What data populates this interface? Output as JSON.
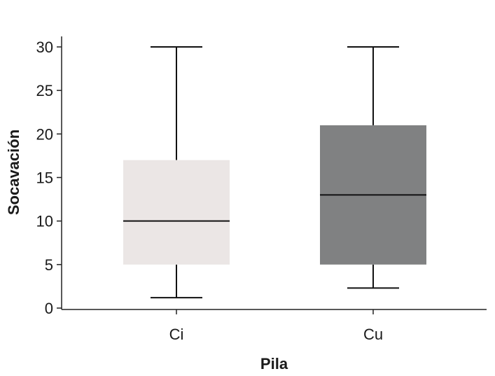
{
  "chart_data": {
    "type": "box",
    "xlabel": "Pila",
    "ylabel": "Socavación",
    "ylim": [
      0,
      31
    ],
    "yticks": [
      0,
      5,
      10,
      15,
      20,
      25,
      30
    ],
    "grid": false,
    "categories": [
      "Ci",
      "Cu"
    ],
    "boxes": [
      {
        "category": "Ci",
        "min": 1.2,
        "q1": 5,
        "median": 10,
        "q3": 17,
        "max": 30,
        "color": "#ebe6e5"
      },
      {
        "category": "Cu",
        "min": 2.3,
        "q1": 5,
        "median": 13,
        "q3": 21,
        "max": 30,
        "color": "#808182"
      }
    ]
  }
}
